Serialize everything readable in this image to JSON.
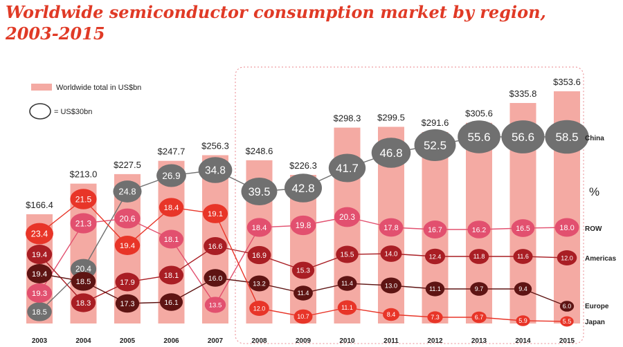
{
  "page": {
    "title_line1": "Worldwide semiconductor consumption market by region,",
    "title_line2": "2003-2015"
  },
  "legend": {
    "total_label": "Worldwide total in US$bn",
    "bubble_label": "= US$30bn"
  },
  "colors": {
    "title": "#e03a26",
    "bar": "#f4aaa3",
    "china": "#707070",
    "row": "#e2506f",
    "americas": "#a91e24",
    "europe": "#5e1413",
    "japan": "#e83528",
    "frame": "#e8838a"
  },
  "chart_data": {
    "type": "bar",
    "categories": [
      "2003",
      "2004",
      "2005",
      "2006",
      "2007",
      "2008",
      "2009",
      "2010",
      "2011",
      "2012",
      "2013",
      "2014",
      "2015"
    ],
    "totals": [
      166.4,
      213.0,
      227.5,
      247.7,
      256.3,
      248.6,
      226.3,
      298.3,
      299.5,
      291.6,
      305.6,
      335.8,
      353.6
    ],
    "total_labels": [
      "$166.4",
      "$213.0",
      "$227.5",
      "$247.7",
      "$256.3",
      "$248.6",
      "$226.3",
      "$298.3",
      "$299.5",
      "$291.6",
      "$305.6",
      "$335.8",
      "$353.6"
    ],
    "unit_label": "%",
    "series": [
      {
        "name": "China",
        "key": "china",
        "values": [
          18.5,
          20.4,
          24.8,
          26.9,
          34.8,
          39.5,
          42.8,
          41.7,
          46.8,
          52.5,
          55.6,
          56.6,
          58.5
        ]
      },
      {
        "name": "ROW",
        "key": "row",
        "values": [
          19.3,
          21.3,
          20.6,
          18.1,
          13.5,
          18.4,
          19.8,
          20.3,
          17.8,
          16.7,
          16.2,
          16.5,
          18.0
        ]
      },
      {
        "name": "Americas",
        "key": "americas",
        "values": [
          19.4,
          18.3,
          17.9,
          18.1,
          16.6,
          16.9,
          15.3,
          15.5,
          14.0,
          12.4,
          11.8,
          11.6,
          12.0
        ]
      },
      {
        "name": "Europe",
        "key": "europe",
        "values": [
          19.4,
          18.5,
          17.3,
          16.1,
          16.0,
          13.2,
          11.4,
          11.4,
          13.0,
          11.1,
          9.7,
          9.4,
          6.0
        ]
      },
      {
        "name": "Japan",
        "key": "japan",
        "values": [
          23.4,
          21.5,
          19.4,
          18.4,
          19.1,
          12.0,
          10.7,
          11.1,
          8.4,
          7.3,
          6.7,
          5.9,
          5.5
        ]
      }
    ],
    "value_labels": {
      "china": [
        "18.5",
        "20.4",
        "24.8",
        "26.9",
        "34.8",
        "39.5",
        "42.8",
        "41.7",
        "46.8",
        "52.5",
        "55.6",
        "56.6",
        "58.5"
      ],
      "row": [
        "19.3",
        "21.3",
        "20.6",
        "18.1",
        "13.5",
        "18.4",
        "19.8",
        "20.3",
        "17.8",
        "16.7",
        "16.2",
        "16.5",
        "18.0"
      ],
      "americas": [
        "19.4",
        "18.3",
        "17.9",
        "18.1",
        "16.6",
        "16.9",
        "15.3",
        "15.5",
        "14.0",
        "12.4",
        "11.8",
        "11.6",
        "12.0"
      ],
      "europe": [
        "19.4",
        "18.5",
        "17.3",
        "16.1",
        "16.0",
        "13.2",
        "11.4",
        "11.4",
        "13.0",
        "11.1",
        "9.7",
        "9.4",
        "6.0"
      ],
      "japan": [
        "23.4",
        "21.5",
        "19.4",
        "18.4",
        "19.1",
        "12.0",
        "10.7",
        "11.1",
        "8.4",
        "7.3",
        "6.7",
        "5.9",
        "5.5"
      ]
    }
  }
}
